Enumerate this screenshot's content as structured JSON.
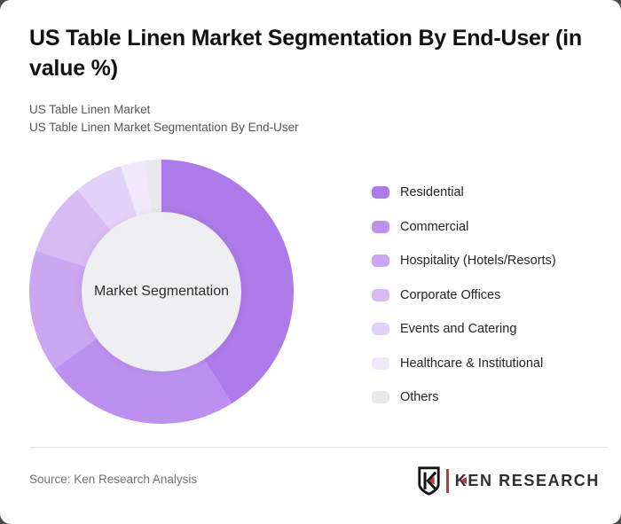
{
  "header": {
    "title": "US Table Linen Market Segmentation By End-User (in value %)",
    "subtitle_line1": "US Table Linen Market",
    "subtitle_line2": "US Table Linen Market Segmentation By End-User"
  },
  "chart_data": {
    "type": "pie",
    "style": "donut",
    "title": "US Table Linen Market Segmentation By End-User (in value %)",
    "center_label": "Market Segmentation",
    "labels": [
      "Residential",
      "Commercial",
      "Hospitality (Hotels/Resorts)",
      "Corporate Offices",
      "Events and Catering",
      "Healthcare & Institutional",
      "Others"
    ],
    "values": [
      41,
      24,
      15,
      9,
      6,
      3,
      2
    ],
    "unit": "value %",
    "colors": [
      "#ad7ae9",
      "#bc90ee",
      "#cba6f1",
      "#d7bcf4",
      "#e3d1f8",
      "#f0e9fc",
      "#e9e8ec"
    ],
    "start_angle_deg": 0,
    "direction": "clockwise",
    "legend_position": "right",
    "data_labels_shown": false
  },
  "footer": {
    "source": "Source: Ken Research Analysis",
    "logo_text": "KEN RESEARCH"
  },
  "colors": {
    "brand_red": "#c13b30",
    "card_background": "#ffffff",
    "page_background": "#4a4a4c",
    "donut_hole": "#efeef0",
    "title_text": "#121212",
    "subtitle_text": "#53575a",
    "source_text": "#6e7275"
  }
}
